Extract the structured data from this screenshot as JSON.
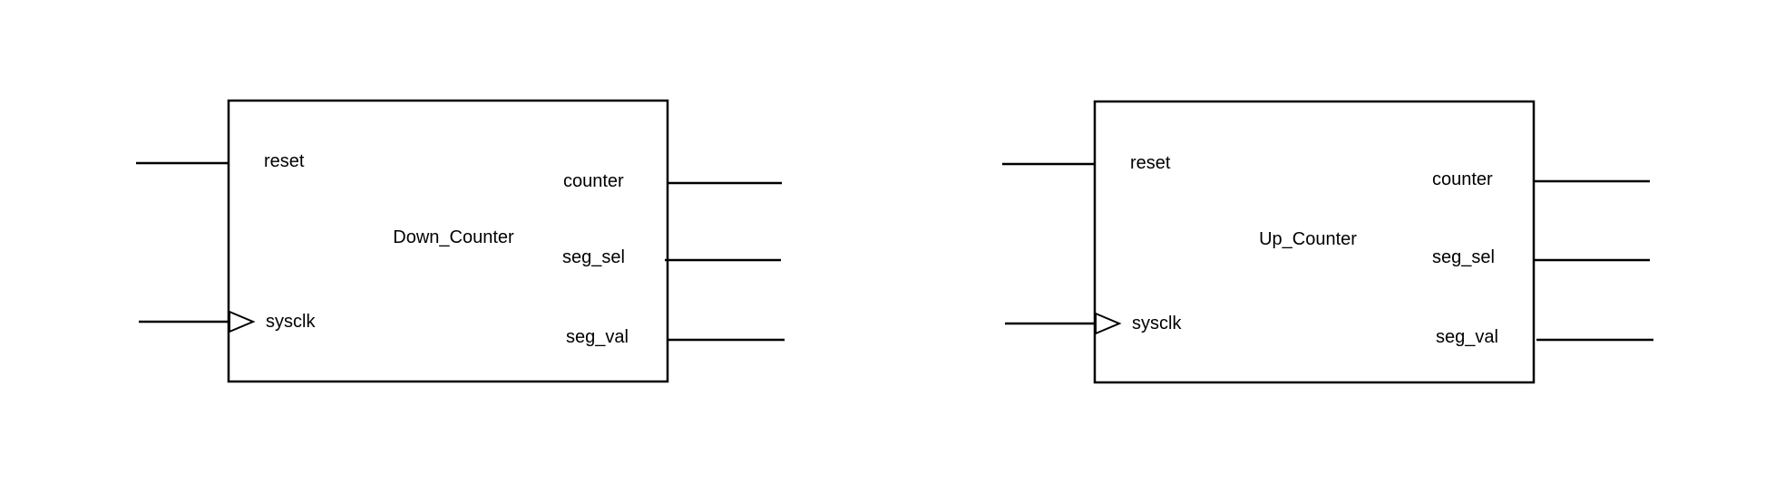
{
  "colors": {
    "background": "#ffffff",
    "stroke": "#000000",
    "text": "#000000"
  },
  "blocks": [
    {
      "name": "Down_Counter",
      "inputs": {
        "reset": "reset",
        "clock": "sysclk"
      },
      "outputs": [
        "counter",
        "seg_sel",
        "seg_val"
      ]
    },
    {
      "name": "Up_Counter",
      "inputs": {
        "reset": "reset",
        "clock": "sysclk"
      },
      "outputs": [
        "counter",
        "seg_sel",
        "seg_val"
      ]
    }
  ]
}
